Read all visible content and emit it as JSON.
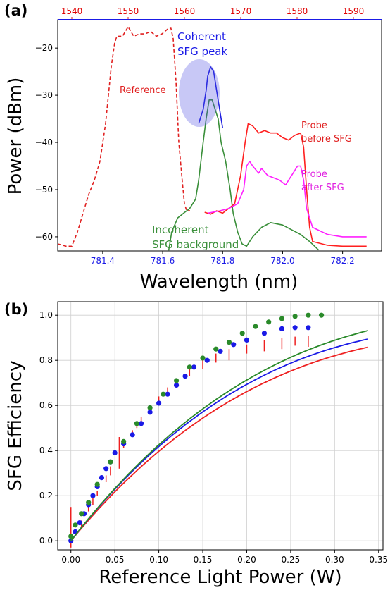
{
  "chart_data": [
    {
      "panel_label": "(a)",
      "type": "line",
      "xlabel": "Wavelength (nm)",
      "ylabel": "Power (dBm)",
      "xlim": [
        781.25,
        782.33
      ],
      "ylim": [
        -63,
        -14
      ],
      "x_ticks": [
        "781.4",
        "781.6",
        "781.8",
        "782.0",
        "782.2"
      ],
      "y_ticks": [
        "−20",
        "−30",
        "−40",
        "−50",
        "−60"
      ],
      "top_axis_ticks": [
        "1540",
        "1550",
        "1560",
        "1570",
        "1580",
        "1590"
      ],
      "top_axis_range": [
        1537.5,
        1595
      ],
      "grid": false,
      "annotations": {
        "coherent": [
          "Coherent",
          "SFG peak"
        ],
        "reference": "Reference",
        "probe_before": [
          "Probe",
          "before SFG"
        ],
        "probe_after": [
          "Probe",
          "after SFG"
        ],
        "incoherent": [
          "Incoherent",
          "SFG background"
        ]
      },
      "series": [
        {
          "color": "#e02020",
          "style": "dashed",
          "axis": "top",
          "points": [
            [
              1537.5,
              -61.5
            ],
            [
              1539,
              -62
            ],
            [
              1540,
              -62
            ],
            [
              1541,
              -59
            ],
            [
              1542,
              -55
            ],
            [
              1543,
              -51
            ],
            [
              1544,
              -48
            ],
            [
              1545,
              -44
            ],
            [
              1546,
              -36
            ],
            [
              1547,
              -24
            ],
            [
              1547.6,
              -19
            ],
            [
              1548,
              -17.5
            ],
            [
              1549,
              -17.5
            ],
            [
              1550,
              -15.5
            ],
            [
              1551,
              -17.5
            ],
            [
              1552,
              -17
            ],
            [
              1553,
              -17
            ],
            [
              1554,
              -16.5
            ],
            [
              1555,
              -17.5
            ],
            [
              1556,
              -17
            ],
            [
              1557,
              -16
            ],
            [
              1557.6,
              -15.8
            ],
            [
              1558,
              -18
            ],
            [
              1558.5,
              -27
            ],
            [
              1559,
              -40
            ],
            [
              1559.6,
              -48
            ],
            [
              1560,
              -53
            ],
            [
              1560.4,
              -54.5
            ],
            [
              1561,
              -54.5
            ]
          ]
        },
        {
          "color": "#3a8f3a",
          "style": "solid",
          "axis": "bottom",
          "points": [
            [
              781.62,
              -62.9
            ],
            [
              781.63,
              -59
            ],
            [
              781.65,
              -56
            ],
            [
              781.67,
              -55
            ],
            [
              781.69,
              -54
            ],
            [
              781.71,
              -52
            ],
            [
              781.72,
              -48
            ],
            [
              781.735,
              -40
            ],
            [
              781.745,
              -35
            ],
            [
              781.755,
              -31
            ],
            [
              781.765,
              -31
            ],
            [
              781.775,
              -33
            ],
            [
              781.785,
              -35
            ],
            [
              781.795,
              -40
            ],
            [
              781.81,
              -44
            ],
            [
              781.825,
              -50
            ],
            [
              781.835,
              -55
            ],
            [
              781.85,
              -59
            ],
            [
              781.865,
              -61.5
            ],
            [
              781.88,
              -62
            ],
            [
              781.9,
              -60
            ],
            [
              781.93,
              -58
            ],
            [
              781.96,
              -57
            ],
            [
              782.0,
              -57.5
            ],
            [
              782.03,
              -58.5
            ],
            [
              782.06,
              -59.5
            ],
            [
              782.09,
              -61
            ],
            [
              782.12,
              -62.8
            ]
          ]
        },
        {
          "color": "#2020e0",
          "style": "solid",
          "axis": "bottom",
          "points": [
            [
              781.72,
              -36
            ],
            [
              781.735,
              -33
            ],
            [
              781.745,
              -29
            ],
            [
              781.75,
              -26
            ],
            [
              781.76,
              -24
            ],
            [
              781.77,
              -25
            ],
            [
              781.78,
              -29
            ],
            [
              781.79,
              -33
            ],
            [
              781.8,
              -37
            ]
          ]
        },
        {
          "color": "#ff2020",
          "style": "solid",
          "axis": "bottom",
          "points": [
            [
              781.74,
              -54.8
            ],
            [
              781.76,
              -55.2
            ],
            [
              781.78,
              -54.5
            ],
            [
              781.8,
              -55
            ],
            [
              781.82,
              -54
            ],
            [
              781.84,
              -53
            ],
            [
              781.86,
              -47
            ],
            [
              781.875,
              -40
            ],
            [
              781.885,
              -36
            ],
            [
              781.9,
              -36.5
            ],
            [
              781.92,
              -38
            ],
            [
              781.94,
              -37.5
            ],
            [
              781.96,
              -38
            ],
            [
              781.98,
              -38
            ],
            [
              782.0,
              -39
            ],
            [
              782.02,
              -39.5
            ],
            [
              782.04,
              -38.5
            ],
            [
              782.06,
              -38
            ],
            [
              782.07,
              -41
            ],
            [
              782.08,
              -50
            ],
            [
              782.09,
              -58
            ],
            [
              782.1,
              -61
            ],
            [
              782.15,
              -61.8
            ],
            [
              782.2,
              -62
            ],
            [
              782.28,
              -62
            ]
          ]
        },
        {
          "color": "#ff20ff",
          "style": "solid",
          "axis": "bottom",
          "points": [
            [
              781.75,
              -55
            ],
            [
              781.79,
              -54.5
            ],
            [
              781.82,
              -54
            ],
            [
              781.85,
              -53
            ],
            [
              781.87,
              -50
            ],
            [
              781.88,
              -45
            ],
            [
              781.89,
              -44
            ],
            [
              781.9,
              -45
            ],
            [
              781.92,
              -46.5
            ],
            [
              781.93,
              -45.5
            ],
            [
              781.95,
              -47
            ],
            [
              781.97,
              -47.5
            ],
            [
              781.99,
              -48
            ],
            [
              782.01,
              -49
            ],
            [
              782.03,
              -47
            ],
            [
              782.05,
              -45
            ],
            [
              782.06,
              -45
            ],
            [
              782.07,
              -48
            ],
            [
              782.08,
              -54
            ],
            [
              782.1,
              -58
            ],
            [
              782.15,
              -59.5
            ],
            [
              782.2,
              -60
            ],
            [
              782.28,
              -60
            ]
          ]
        }
      ]
    },
    {
      "panel_label": "(b)",
      "type": "line",
      "xlabel": "Reference Light Power (W)",
      "ylabel": "SFG Efficiency",
      "xlim": [
        -0.015,
        0.355
      ],
      "ylim": [
        -0.04,
        1.06
      ],
      "x_ticks": [
        "0.00",
        "0.05",
        "0.10",
        "0.15",
        "0.20",
        "0.25",
        "0.30",
        "0.35"
      ],
      "y_ticks": [
        "0.0",
        "0.2",
        "0.4",
        "0.6",
        "0.8",
        "1.0"
      ],
      "grid": true,
      "series": [
        {
          "color": "#ee2020",
          "fit_peak": 0.913,
          "fit_scale": 0.193,
          "fit_range": [
            0,
            0.338
          ],
          "points": [
            [
              0.0,
              0.0
            ],
            [
              0.005,
              0.04
            ],
            [
              0.012,
              0.09
            ],
            [
              0.02,
              0.15
            ],
            [
              0.025,
              0.19
            ],
            [
              0.03,
              0.22
            ],
            [
              0.04,
              0.29
            ],
            [
              0.045,
              0.33
            ],
            [
              0.055,
              0.4
            ],
            [
              0.06,
              0.43
            ],
            [
              0.07,
              0.49
            ],
            [
              0.075,
              0.52
            ],
            [
              0.08,
              0.55
            ],
            [
              0.09,
              0.6
            ],
            [
              0.1,
              0.64
            ],
            [
              0.11,
              0.68
            ],
            [
              0.12,
              0.72
            ],
            [
              0.135,
              0.76
            ],
            [
              0.15,
              0.8
            ],
            [
              0.165,
              0.83
            ],
            [
              0.18,
              0.85
            ],
            [
              0.2,
              0.87
            ],
            [
              0.22,
              0.89
            ],
            [
              0.24,
              0.9
            ],
            [
              0.255,
              0.905
            ],
            [
              0.27,
              0.91
            ]
          ],
          "error_up": [
            0.15,
            0,
            0,
            0,
            0,
            0,
            0,
            0,
            0.06,
            0,
            0,
            0,
            0,
            0,
            0,
            0,
            0,
            0,
            0,
            0,
            0,
            0,
            0,
            0,
            0,
            0
          ],
          "error_down": [
            0.03,
            0.02,
            0.03,
            0.02,
            0.03,
            0.02,
            0.03,
            0.04,
            0.08,
            0.02,
            0.03,
            0.02,
            0.04,
            0.03,
            0.04,
            0.03,
            0.04,
            0.03,
            0.04,
            0.04,
            0.05,
            0.04,
            0.05,
            0.05,
            0.04,
            0.05
          ]
        },
        {
          "color": "#1a1ae6",
          "fit_peak": 0.945,
          "fit_scale": 0.189,
          "fit_range": [
            0,
            0.338
          ],
          "points": [
            [
              0.0,
              0.0
            ],
            [
              0.005,
              0.04
            ],
            [
              0.01,
              0.08
            ],
            [
              0.015,
              0.12
            ],
            [
              0.02,
              0.16
            ],
            [
              0.025,
              0.2
            ],
            [
              0.03,
              0.24
            ],
            [
              0.035,
              0.28
            ],
            [
              0.04,
              0.32
            ],
            [
              0.045,
              0.35
            ],
            [
              0.05,
              0.39
            ],
            [
              0.06,
              0.43
            ],
            [
              0.07,
              0.47
            ],
            [
              0.08,
              0.52
            ],
            [
              0.09,
              0.57
            ],
            [
              0.1,
              0.61
            ],
            [
              0.11,
              0.65
            ],
            [
              0.12,
              0.69
            ],
            [
              0.13,
              0.73
            ],
            [
              0.14,
              0.77
            ],
            [
              0.155,
              0.8
            ],
            [
              0.17,
              0.84
            ],
            [
              0.185,
              0.87
            ],
            [
              0.2,
              0.89
            ],
            [
              0.22,
              0.92
            ],
            [
              0.24,
              0.94
            ],
            [
              0.255,
              0.945
            ],
            [
              0.27,
              0.945
            ]
          ]
        },
        {
          "color": "#2a8a2a",
          "fit_peak": 1.0,
          "fit_scale": 0.198,
          "fit_range": [
            0,
            0.338
          ],
          "points": [
            [
              0.0,
              0.02
            ],
            [
              0.005,
              0.07
            ],
            [
              0.012,
              0.12
            ],
            [
              0.02,
              0.17
            ],
            [
              0.03,
              0.25
            ],
            [
              0.045,
              0.35
            ],
            [
              0.06,
              0.44
            ],
            [
              0.075,
              0.52
            ],
            [
              0.09,
              0.59
            ],
            [
              0.105,
              0.65
            ],
            [
              0.12,
              0.71
            ],
            [
              0.135,
              0.77
            ],
            [
              0.15,
              0.81
            ],
            [
              0.165,
              0.85
            ],
            [
              0.18,
              0.88
            ],
            [
              0.195,
              0.92
            ],
            [
              0.21,
              0.95
            ],
            [
              0.225,
              0.97
            ],
            [
              0.24,
              0.985
            ],
            [
              0.255,
              0.995
            ],
            [
              0.27,
              1.0
            ],
            [
              0.285,
              1.0
            ]
          ]
        }
      ]
    }
  ]
}
